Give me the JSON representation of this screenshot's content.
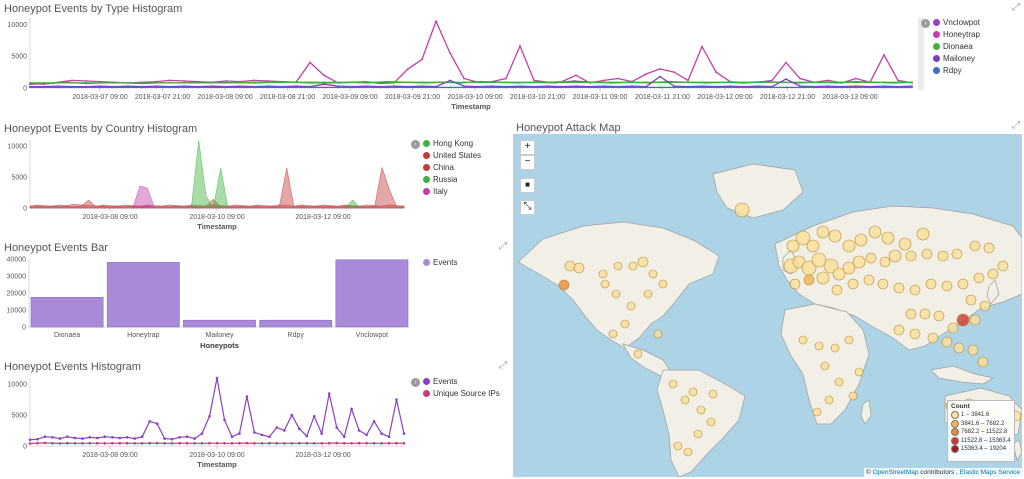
{
  "colors": {
    "vnclowpot": "#9c3ec9",
    "honeytrap": "#c53dab",
    "dionaea": "#3db33d",
    "mailoney": "#7a3fbd",
    "rdpy": "#3b6fd0",
    "hong_kong": "#3db33d",
    "united_states": "#c53b3b",
    "china": "#c53b3b",
    "russia": "#3db33d",
    "italy": "#c53dab",
    "bar_fill": "#a98ad8",
    "events_line": "#8a3fc9",
    "ips_line": "#c53b7d"
  },
  "icons": {
    "expand": "expand-arrows-icon",
    "legend_toggle": "chevron-circle-icon"
  },
  "panel1": {
    "title": "Honeypot Events by Type Histogram",
    "expand_glyph": "⤢",
    "toggle_glyph": "›",
    "legend": [
      "Vnclowpot",
      "Honeytrap",
      "Dionaea",
      "Mailoney",
      "Rdpy"
    ]
  },
  "panel2": {
    "title": "Honeypot Events by Country Histogram",
    "toggle_glyph": "›",
    "legend": [
      "Hong Kong",
      "United States",
      "China",
      "Russia",
      "Italy"
    ]
  },
  "panel3": {
    "title": "Honeypot Events Bar",
    "expand_glyph": "⤢",
    "legend": [
      "Events"
    ]
  },
  "panel4": {
    "title": "Honeypot Events Histogram",
    "expand_glyph": "⤢",
    "toggle_glyph": "›",
    "legend": [
      "Events",
      "Unique Source IPs"
    ]
  },
  "panel5": {
    "title": "Honeypot Attack Map",
    "expand_glyph": "⤢",
    "zoom_in": "+",
    "zoom_out": "−",
    "draw_rect": "■",
    "fit_bounds": "⤡",
    "legend_title": "Count",
    "legend_rows": [
      "1 – 3841.6",
      "3841.6 – 7682.2",
      "7682.2 – 11522.8",
      "11522.8 – 15363.4",
      "15363.4 – 19204"
    ],
    "legend_colors": [
      "#fde09a",
      "#f5b34c",
      "#e98a35",
      "#d13a2a",
      "#a3171e"
    ],
    "attribution_prefix": "© ",
    "attribution_osm": "OpenStreetMap",
    "attribution_mid": " contributors",
    "attribution_sep": " , ",
    "attribution_ems": "Elastic Maps Service"
  },
  "chart_data": [
    {
      "type": "line",
      "title": "Honeypot Events by Type Histogram",
      "xlabel": "Timestamp",
      "ylabel": "",
      "ylim": [
        0,
        11000
      ],
      "y_ticks": [
        "10000",
        "5000",
        "0"
      ],
      "x_tick_labels": [
        "2018-03-07 09:00",
        "2018-03-07 21:00",
        "2018-03-08 09:00",
        "2018-03-08 21:00",
        "2018-03-09 09:00",
        "2018-03-09 21:00",
        "2018-03-10 09:00",
        "2018-03-10 21:00",
        "2018-03-11 09:00",
        "2018-03-11 21:00",
        "2018-03-12 09:00",
        "2018-03-12 21:00",
        "2018-03-13 09:00"
      ],
      "legend_position": "right",
      "series": [
        {
          "name": "Vnclowpot",
          "values": [
            600,
            700,
            900,
            700,
            800,
            800,
            700,
            800,
            800,
            900,
            900,
            800,
            800,
            900,
            900,
            800,
            800,
            900,
            800,
            1000,
            900,
            800,
            900,
            800,
            1000,
            900,
            800,
            900,
            800,
            1100,
            900,
            800,
            900,
            800,
            1000,
            900,
            800,
            900,
            800,
            1000,
            900,
            800,
            900,
            800,
            1000,
            900,
            800,
            900
          ]
        },
        {
          "name": "Honeytrap",
          "values": [
            700,
            600,
            900,
            1200,
            1100,
            1000,
            900,
            800,
            900,
            1000,
            1200,
            1100,
            1000,
            900,
            1100,
            1000,
            1200,
            1100,
            1000,
            900,
            4000,
            2000,
            800,
            900,
            1000,
            700,
            800,
            3000,
            4500,
            10500,
            5500,
            1500,
            900,
            1000,
            1500,
            6600,
            1200,
            900,
            1000,
            2000,
            800,
            1200,
            1500,
            1000,
            2200,
            3000,
            2500,
            1200,
            6500,
            2500,
            1000,
            800,
            900,
            1200,
            4000,
            1500,
            900,
            1200,
            800,
            1500,
            900,
            5200,
            1200,
            800
          ]
        },
        {
          "name": "Dionaea",
          "values": [
            800,
            800,
            800,
            800,
            800,
            800,
            800,
            800,
            800,
            800,
            800,
            800,
            800,
            800,
            800,
            800,
            900,
            900,
            900,
            900,
            900,
            900,
            900,
            900,
            900,
            900,
            900,
            900,
            900,
            900,
            900,
            900,
            900,
            900,
            900,
            900,
            900,
            900,
            900,
            900,
            900,
            900,
            900,
            900,
            900,
            900,
            900,
            900,
            900,
            900,
            900,
            900,
            900,
            900,
            900,
            900,
            900,
            900,
            900,
            900,
            900,
            900,
            900,
            900
          ]
        },
        {
          "name": "Mailoney",
          "values": [
            200,
            200,
            300,
            200,
            200,
            300,
            200,
            300,
            200,
            300,
            200,
            300,
            200,
            300,
            200,
            300,
            200,
            300,
            200,
            300,
            200,
            600,
            300,
            200,
            300,
            200,
            300,
            200,
            300,
            200,
            1200,
            300,
            200,
            300,
            200,
            300,
            200,
            300,
            200,
            300,
            200,
            300,
            200,
            300,
            200,
            1800,
            300,
            200,
            300,
            200,
            300,
            200,
            300,
            200,
            1400,
            300,
            200,
            300,
            200,
            300,
            200,
            300,
            200,
            300
          ]
        },
        {
          "name": "Rdpy",
          "values": [
            100,
            100,
            100,
            100,
            100,
            100,
            100,
            100,
            100,
            100,
            100,
            100,
            100,
            100,
            100,
            100,
            100,
            100,
            100,
            100,
            100,
            100,
            100,
            100,
            100,
            100,
            100,
            100,
            100,
            100,
            100,
            100,
            100,
            100,
            100,
            100,
            100,
            100,
            100,
            100,
            100,
            100,
            100,
            100,
            100,
            100,
            100,
            100,
            100,
            100,
            100,
            100,
            100,
            100,
            100,
            100,
            100,
            100,
            100,
            100,
            100,
            100,
            100,
            100
          ]
        }
      ]
    },
    {
      "type": "area",
      "title": "Honeypot Events by Country Histogram",
      "xlabel": "Timestamp",
      "ylabel": "",
      "ylim": [
        0,
        11000
      ],
      "y_ticks": [
        "10000",
        "5000",
        "0"
      ],
      "x_tick_labels": [
        "2018-03-08 09:00",
        "2018-03-10 09:00",
        "2018-03-12 09:00"
      ],
      "legend_position": "right",
      "series": [
        {
          "name": "Hong Kong",
          "values": [
            0,
            0,
            0,
            0,
            0,
            0,
            0,
            0,
            0,
            0,
            0,
            0,
            0,
            0,
            0,
            0,
            0,
            0,
            0,
            0,
            0,
            0,
            0,
            0,
            0,
            0,
            0,
            0,
            0,
            0,
            0,
            0,
            0,
            0,
            0,
            0,
            0,
            0,
            0,
            0,
            0,
            0,
            0,
            0,
            0,
            0,
            0,
            0,
            0,
            0,
            0,
            0
          ]
        },
        {
          "name": "United States",
          "values": [
            300,
            500,
            400,
            300,
            500,
            400,
            600,
            500,
            400,
            300,
            500,
            400,
            300,
            500,
            400,
            300,
            500,
            400,
            300,
            500,
            400,
            300,
            500,
            400,
            300,
            500,
            400,
            300,
            500,
            400,
            300,
            500,
            400,
            300,
            500,
            400,
            300,
            500,
            400,
            300,
            500,
            400,
            300,
            500,
            400,
            300,
            500,
            400,
            300,
            500,
            400,
            300
          ]
        },
        {
          "name": "China",
          "values": [
            200,
            300,
            200,
            300,
            200,
            300,
            200,
            300,
            1300,
            200,
            300,
            200,
            300,
            200,
            300,
            200,
            300,
            200,
            300,
            200,
            300,
            200,
            300,
            200,
            300,
            1400,
            200,
            300,
            200,
            300,
            200,
            300,
            200,
            300,
            200,
            6500,
            200,
            300,
            200,
            300,
            200,
            300,
            200,
            300,
            200,
            300,
            200,
            300,
            6600,
            3000,
            200,
            300
          ]
        },
        {
          "name": "Russia",
          "values": [
            0,
            0,
            0,
            0,
            0,
            0,
            0,
            0,
            0,
            0,
            0,
            0,
            0,
            0,
            0,
            0,
            0,
            0,
            0,
            0,
            0,
            0,
            0,
            11000,
            2000,
            0,
            6500,
            0,
            0,
            0,
            0,
            0,
            0,
            0,
            0,
            0,
            0,
            0,
            0,
            0,
            0,
            0,
            0,
            0,
            1300,
            0,
            0,
            0,
            0,
            0,
            0,
            0
          ]
        },
        {
          "name": "Italy",
          "values": [
            0,
            0,
            0,
            0,
            0,
            0,
            0,
            0,
            0,
            0,
            0,
            0,
            0,
            0,
            0,
            3600,
            3200,
            0,
            0,
            0,
            0,
            0,
            0,
            0,
            0,
            0,
            0,
            0,
            0,
            0,
            0,
            0,
            0,
            0,
            0,
            0,
            0,
            0,
            0,
            0,
            0,
            0,
            0,
            0,
            0,
            0,
            0,
            0,
            0,
            0,
            0,
            0
          ]
        }
      ]
    },
    {
      "type": "bar",
      "title": "Honeypot Events Bar",
      "xlabel": "Honeypots",
      "ylabel": "",
      "ylim": [
        0,
        40000
      ],
      "y_ticks": [
        "40000",
        "30000",
        "20000",
        "10000",
        "0"
      ],
      "categories": [
        "Dionaea",
        "Honeytrap",
        "Mailoney",
        "Rdpy",
        "Vnclowpot"
      ],
      "legend_position": "right",
      "series": [
        {
          "name": "Events",
          "values": [
            17500,
            38000,
            4000,
            4000,
            39500
          ]
        }
      ]
    },
    {
      "type": "line",
      "title": "Honeypot Events Histogram",
      "xlabel": "Timestamp",
      "ylabel": "",
      "ylim": [
        0,
        11000
      ],
      "y_ticks": [
        "10000",
        "5000",
        "0"
      ],
      "x_tick_labels": [
        "2018-03-08 09:00",
        "2018-03-10 09:00",
        "2018-03-12 09:00"
      ],
      "legend_position": "right",
      "series": [
        {
          "name": "Events",
          "values": [
            1000,
            1100,
            1500,
            1400,
            1200,
            1500,
            1300,
            1200,
            1400,
            1300,
            1500,
            1400,
            1300,
            1400,
            1200,
            1500,
            4000,
            3600,
            1200,
            1100,
            1400,
            1500,
            1200,
            2000,
            4800,
            11000,
            4200,
            1500,
            2000,
            8000,
            2200,
            1800,
            1500,
            3000,
            2500,
            5000,
            2800,
            1600,
            4800,
            2000,
            8500,
            3000,
            1500,
            6000,
            2500,
            1800,
            4000,
            2000,
            1500,
            7500,
            2000
          ]
        },
        {
          "name": "Unique Source IPs",
          "values": [
            400,
            450,
            500,
            450,
            420,
            460,
            440,
            430,
            450,
            460,
            440,
            430,
            450,
            460,
            440,
            430,
            450,
            470,
            440,
            430,
            450,
            460,
            440,
            430,
            450,
            460,
            440,
            430,
            450,
            470,
            440,
            430,
            450,
            460,
            440,
            430,
            450,
            460,
            440,
            430,
            450,
            470,
            440,
            430,
            450,
            460,
            440,
            430,
            450,
            460,
            440
          ]
        }
      ]
    }
  ]
}
